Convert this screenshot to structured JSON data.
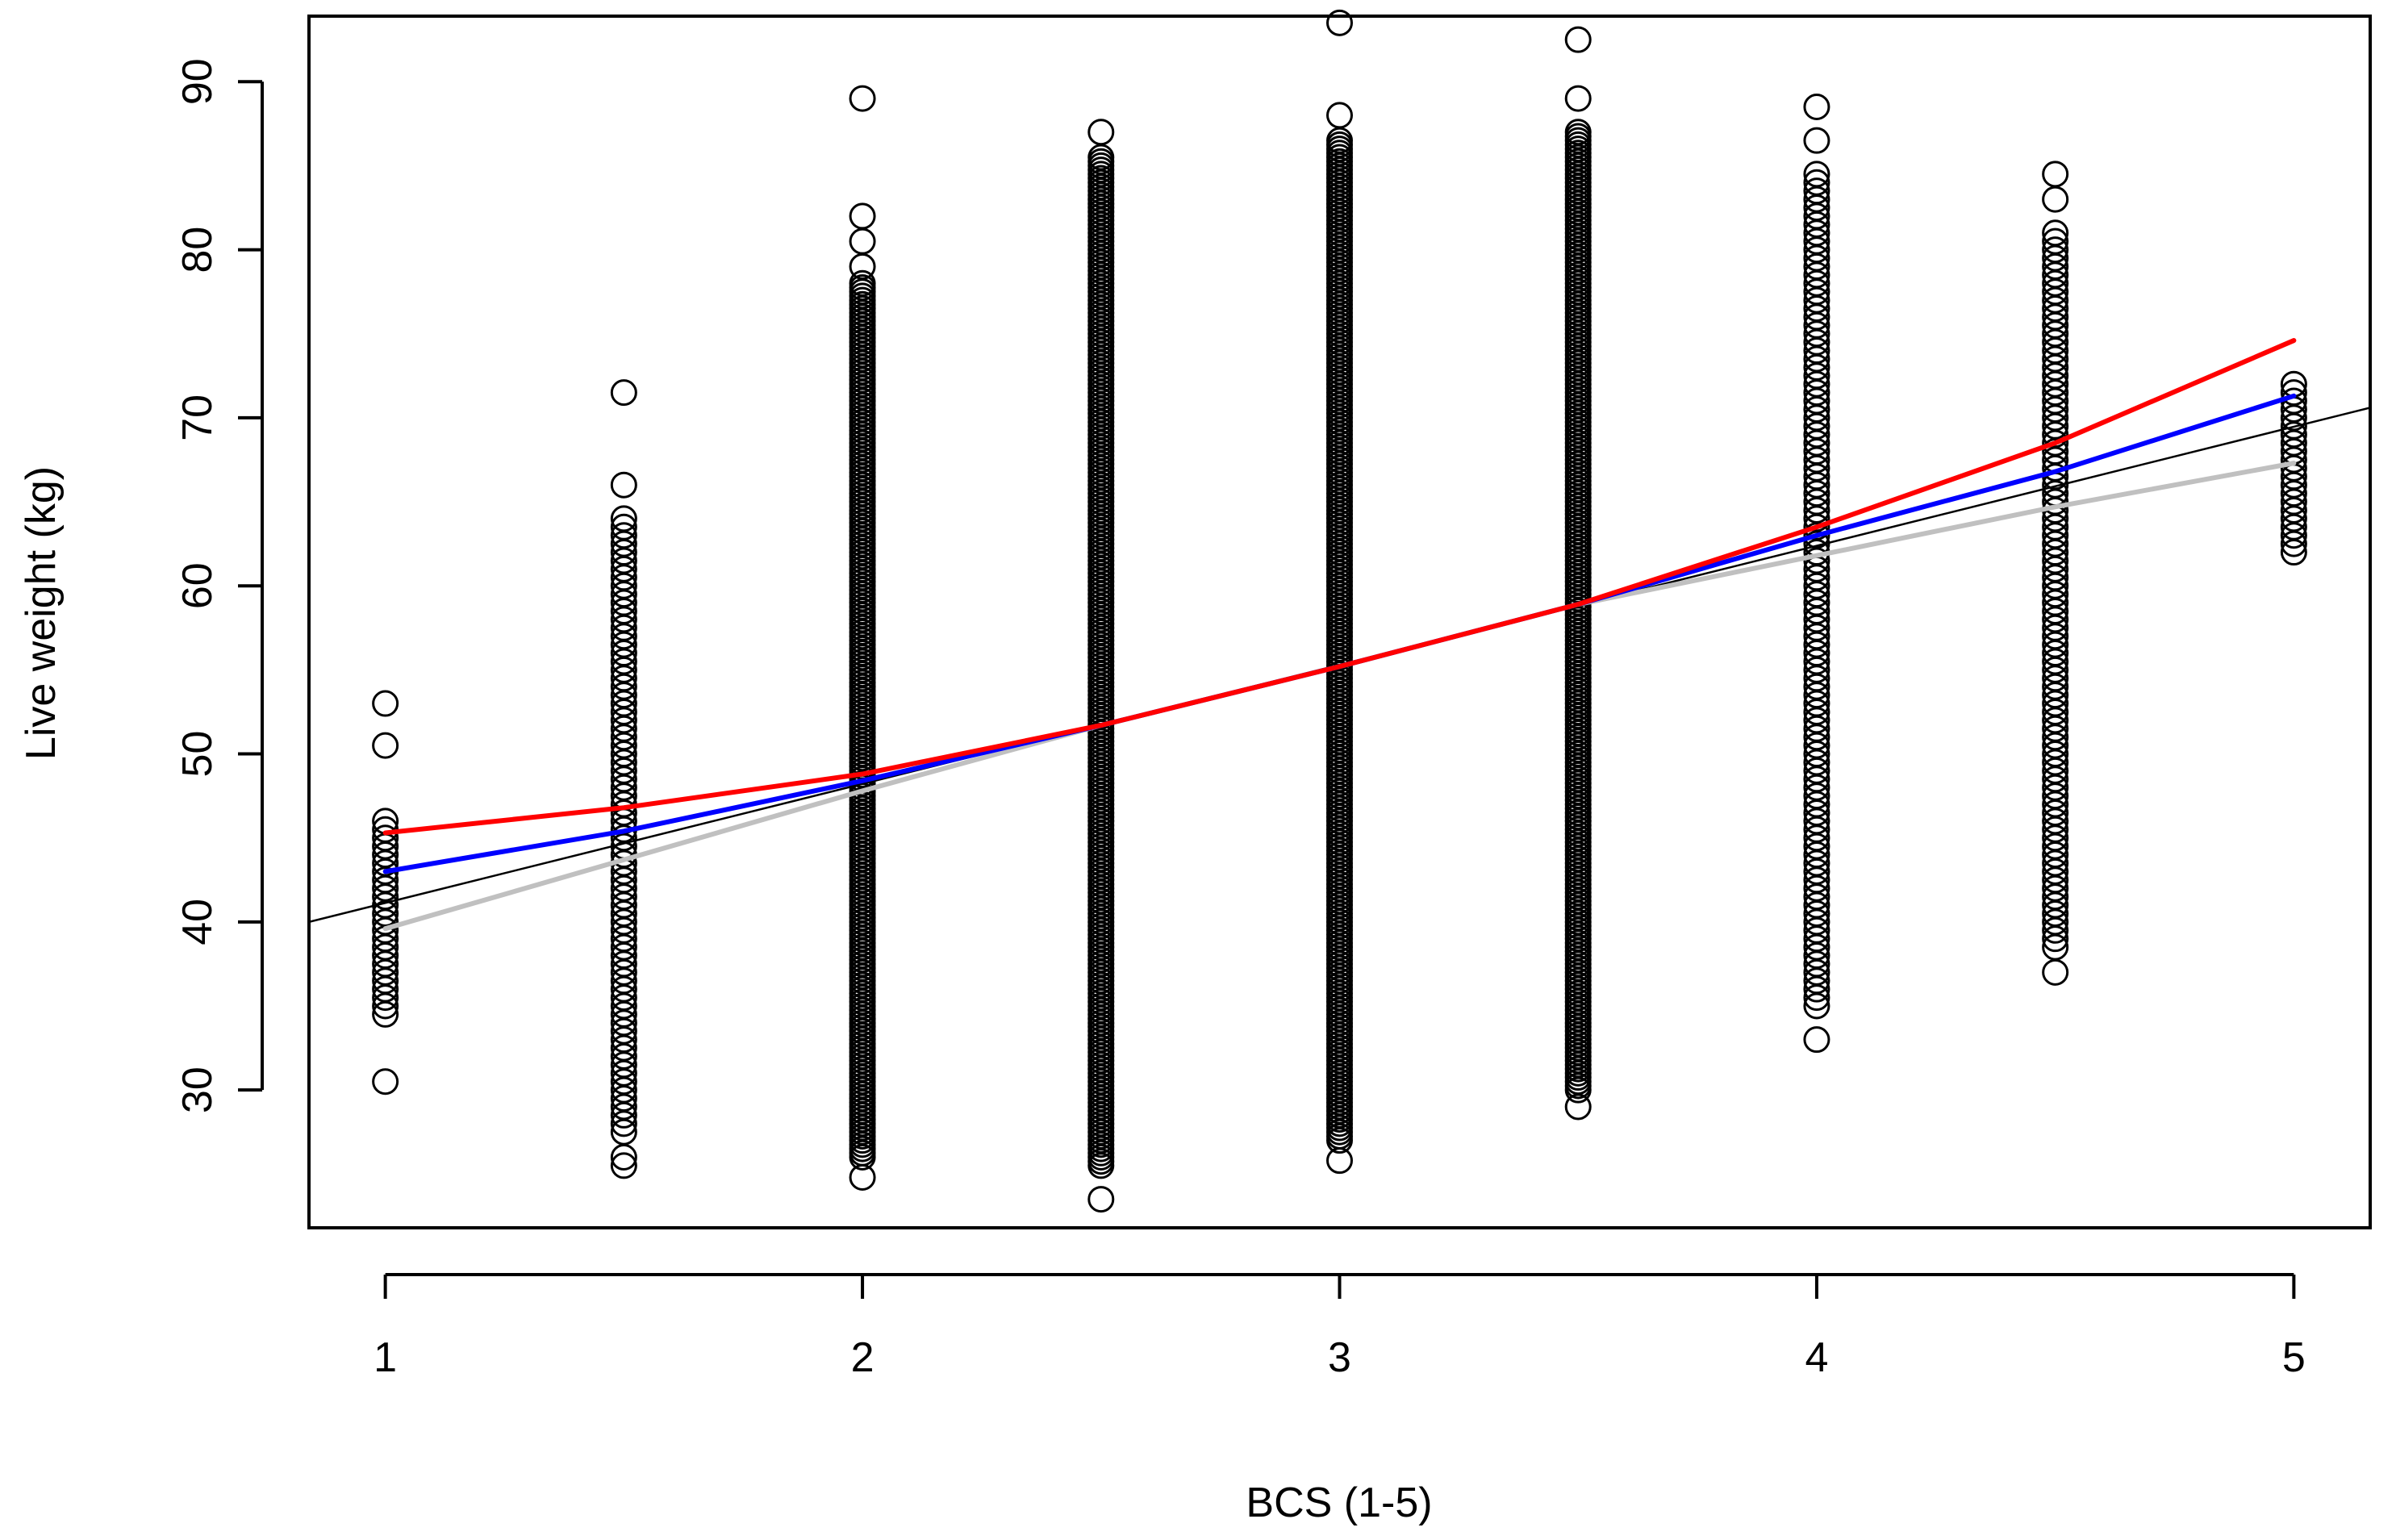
{
  "chart_data": {
    "type": "scatter",
    "title": "",
    "xlabel": "BCS (1-5)",
    "ylabel": "Live weight (kg)",
    "xlim": [
      0.84,
      5.16
    ],
    "ylim": [
      21.8,
      93.9
    ],
    "x_ticks": [
      1,
      2,
      3,
      4,
      5
    ],
    "y_ticks": [
      30,
      40,
      50,
      60,
      70,
      80,
      90
    ],
    "grid": false,
    "legend": "none",
    "point_style": "open-circle",
    "scatter_columns": [
      {
        "x": 1.0,
        "range": [
          34.5,
          46.0
        ],
        "outliers": [
          30.5,
          34.5,
          35.5,
          36.5,
          38.0,
          39.5,
          40.5,
          43.5,
          44.5,
          46.0,
          50.5,
          53.0
        ],
        "dense": false
      },
      {
        "x": 1.5,
        "range": [
          27.5,
          64.0
        ],
        "outliers": [
          25.5,
          26.0,
          66.0,
          71.5
        ],
        "dense": false
      },
      {
        "x": 2.0,
        "range": [
          26.0,
          78.0
        ],
        "outliers": [
          24.8,
          79.0,
          80.5,
          82.0,
          89.0
        ],
        "dense": true
      },
      {
        "x": 2.5,
        "range": [
          25.5,
          85.5
        ],
        "outliers": [
          23.5,
          87.0
        ],
        "dense": true
      },
      {
        "x": 3.0,
        "range": [
          27.0,
          86.5
        ],
        "outliers": [
          25.8,
          88.0,
          93.5
        ],
        "dense": true
      },
      {
        "x": 3.5,
        "range": [
          30.0,
          87.0
        ],
        "outliers": [
          29.0,
          89.0,
          92.5
        ],
        "dense": true
      },
      {
        "x": 4.0,
        "range": [
          35.0,
          84.5
        ],
        "outliers": [
          33.0,
          86.5,
          88.5
        ],
        "dense": false
      },
      {
        "x": 4.5,
        "range": [
          38.5,
          81.0
        ],
        "outliers": [
          37.0,
          83.0,
          84.5
        ],
        "dense": false
      },
      {
        "x": 5.0,
        "range": [
          62.0,
          72.0
        ],
        "outliers": [
          62.0,
          66.0,
          67.5,
          69.0,
          71.0,
          72.0
        ],
        "dense": false
      }
    ],
    "lines": [
      {
        "color": "#000000",
        "style": "thin",
        "extended": true,
        "points": [
          [
            0.84,
            40.0
          ],
          [
            5.16,
            70.6
          ]
        ]
      },
      {
        "color": "#c0c0c0",
        "points": [
          [
            1.0,
            39.6
          ],
          [
            1.5,
            43.7
          ],
          [
            2.0,
            47.8
          ],
          [
            2.5,
            51.7
          ],
          [
            3.0,
            55.2
          ],
          [
            3.5,
            58.9
          ],
          [
            4.0,
            61.8
          ],
          [
            4.5,
            64.7
          ],
          [
            5.0,
            67.3
          ]
        ]
      },
      {
        "color": "#0000ff",
        "points": [
          [
            1.0,
            43.0
          ],
          [
            1.5,
            45.4
          ],
          [
            2.0,
            48.4
          ],
          [
            2.5,
            51.7
          ],
          [
            3.0,
            55.2
          ],
          [
            3.5,
            58.9
          ],
          [
            4.0,
            63.0
          ],
          [
            4.5,
            66.8
          ],
          [
            5.0,
            71.3
          ]
        ]
      },
      {
        "color": "#ff0000",
        "points": [
          [
            1.0,
            45.3
          ],
          [
            1.5,
            46.8
          ],
          [
            2.0,
            48.8
          ],
          [
            2.5,
            51.7
          ],
          [
            3.0,
            55.2
          ],
          [
            3.5,
            58.9
          ],
          [
            4.0,
            63.5
          ],
          [
            4.5,
            68.5
          ],
          [
            5.0,
            74.6
          ]
        ]
      }
    ]
  }
}
